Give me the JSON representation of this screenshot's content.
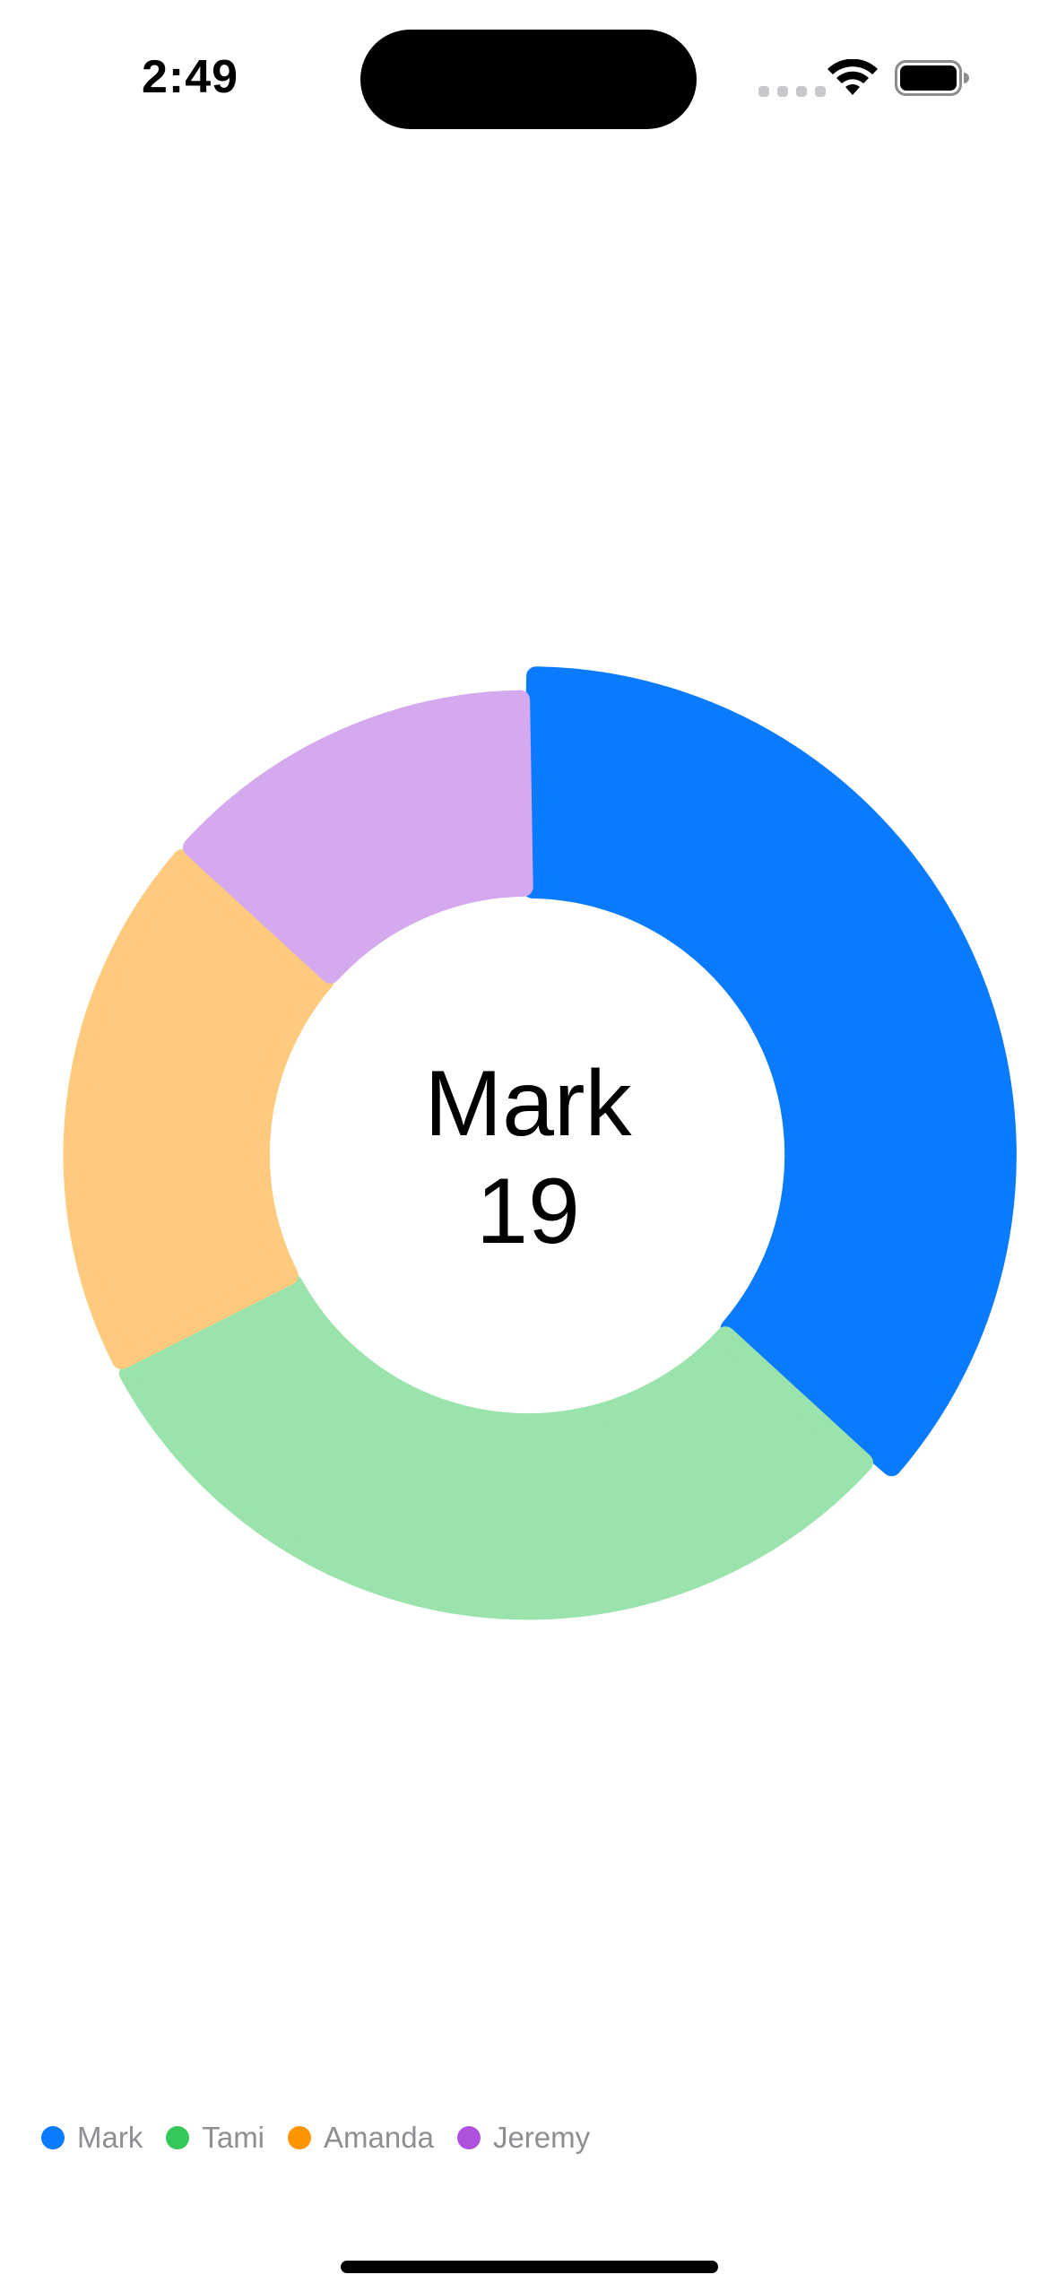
{
  "status_bar": {
    "time": "2:49"
  },
  "selected": {
    "name": "Mark",
    "value": "19"
  },
  "chart_data": {
    "type": "pie",
    "variant": "donut",
    "categories": [
      "Mark",
      "Tami",
      "Amanda",
      "Jeremy"
    ],
    "values": [
      19,
      16,
      10,
      7
    ],
    "colors": [
      "#0A7AFF",
      "#9BE3AC",
      "#FFC97E",
      "#D4A9EE"
    ],
    "legend": {
      "placement": "bottom-left",
      "items": [
        {
          "label": "Mark",
          "color": "#0A7AFF"
        },
        {
          "label": "Tami",
          "color": "#34C759"
        },
        {
          "label": "Amanda",
          "color": "#FF9500"
        },
        {
          "label": "Jeremy",
          "color": "#AF52DE"
        }
      ]
    }
  },
  "icons": {
    "wifi": "wifi-icon",
    "battery": "battery-icon",
    "signal": "cellular-signal-icon"
  }
}
